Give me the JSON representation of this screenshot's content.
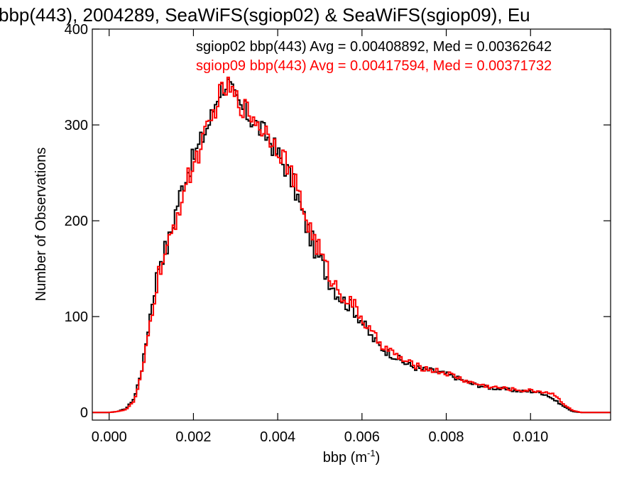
{
  "chart_data": {
    "type": "line",
    "style": "step histogram",
    "title": "bbp(443), 2004289, SeaWiFS(sgiop02) & SeaWiFS(sgiop09), Eu",
    "xlabel": "bbp (m",
    "xlabel_sup": "-1",
    "xlabel_close": ")",
    "ylabel": "Number of Observations",
    "xlim": [
      -0.0004,
      0.0119
    ],
    "ylim": [
      -8,
      400
    ],
    "x_ticks": [
      0.0,
      0.002,
      0.004,
      0.006,
      0.008,
      0.01
    ],
    "x_tick_labels": [
      "0.000",
      "0.002",
      "0.004",
      "0.006",
      "0.008",
      "0.010"
    ],
    "y_ticks": [
      0,
      100,
      200,
      300,
      400
    ],
    "y_tick_labels": [
      "0",
      "100",
      "200",
      "300",
      "400"
    ],
    "grid": false,
    "legend_position": "top-right",
    "bin_width": 5e-05,
    "series": [
      {
        "name": "sgiop02",
        "label": "sgiop02 bbp(443) Avg = 0.00408892, Med = 0.00362642",
        "color": "#000000",
        "x": [
          0.0,
          0.0002,
          0.0004,
          0.0006,
          0.0008,
          0.001,
          0.0012,
          0.0014,
          0.0016,
          0.0018,
          0.002,
          0.0022,
          0.0024,
          0.0026,
          0.0028,
          0.003,
          0.0032,
          0.0034,
          0.0036,
          0.0038,
          0.004,
          0.0042,
          0.0044,
          0.0046,
          0.0048,
          0.005,
          0.0052,
          0.0054,
          0.0056,
          0.0058,
          0.006,
          0.0062,
          0.0064,
          0.0066,
          0.0068,
          0.007,
          0.0072,
          0.0074,
          0.0076,
          0.0078,
          0.008,
          0.0082,
          0.0084,
          0.0086,
          0.0088,
          0.009,
          0.0092,
          0.0094,
          0.0096,
          0.0098,
          0.01,
          0.0102,
          0.0104,
          0.0106,
          0.0108,
          0.011,
          0.0112,
          0.0114
        ],
        "values": [
          0,
          1,
          4,
          15,
          50,
          110,
          160,
          175,
          215,
          245,
          265,
          285,
          305,
          335,
          345,
          325,
          315,
          305,
          295,
          285,
          270,
          255,
          235,
          205,
          180,
          160,
          140,
          125,
          115,
          108,
          95,
          80,
          70,
          63,
          58,
          52,
          48,
          45,
          44,
          42,
          40,
          37,
          33,
          30,
          28,
          26,
          25,
          24,
          23,
          22,
          22,
          21,
          18,
          12,
          6,
          1,
          0,
          0
        ]
      },
      {
        "name": "sgiop09",
        "label": "sgiop09 bbp(443) Avg = 0.00417594, Med = 0.00371732",
        "color": "#ff0000",
        "x": [
          0.0,
          0.0002,
          0.0004,
          0.0006,
          0.0008,
          0.001,
          0.0012,
          0.0014,
          0.0016,
          0.0018,
          0.002,
          0.0022,
          0.0024,
          0.0026,
          0.0028,
          0.003,
          0.0032,
          0.0034,
          0.0036,
          0.0038,
          0.004,
          0.0042,
          0.0044,
          0.0046,
          0.0048,
          0.005,
          0.0052,
          0.0054,
          0.0056,
          0.0058,
          0.006,
          0.0062,
          0.0064,
          0.0066,
          0.0068,
          0.007,
          0.0072,
          0.0074,
          0.0076,
          0.0078,
          0.008,
          0.0082,
          0.0084,
          0.0086,
          0.0088,
          0.009,
          0.0092,
          0.0094,
          0.0096,
          0.0098,
          0.01,
          0.0102,
          0.0104,
          0.0106,
          0.0108,
          0.011,
          0.0112,
          0.0114
        ],
        "values": [
          0,
          1,
          3,
          12,
          45,
          100,
          150,
          170,
          205,
          235,
          258,
          280,
          300,
          330,
          340,
          328,
          318,
          310,
          298,
          290,
          278,
          262,
          240,
          212,
          188,
          168,
          146,
          130,
          120,
          112,
          98,
          84,
          74,
          66,
          60,
          54,
          50,
          47,
          45,
          43,
          41,
          38,
          34,
          31,
          29,
          27,
          26,
          25,
          24,
          23,
          23,
          22,
          21,
          18,
          8,
          2,
          0,
          0
        ]
      }
    ]
  }
}
